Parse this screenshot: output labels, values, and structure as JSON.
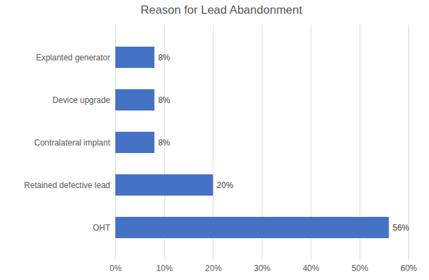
{
  "chart_data": {
    "type": "bar",
    "title": "Reason for Lead Abandonment",
    "orientation": "horizontal",
    "categories": [
      "Explanted generator",
      "Device upgrade",
      "Contralateral implant",
      "Retained defective lead",
      "OHT"
    ],
    "values": [
      8,
      8,
      8,
      20,
      56
    ],
    "value_labels": [
      "8%",
      "8%",
      "8%",
      "20%",
      "56%"
    ],
    "data_labels": true,
    "color": "#4472c4",
    "xlim": [
      0,
      60
    ],
    "xticks": [
      {
        "value": 0,
        "label": "0%"
      },
      {
        "value": 10,
        "label": "10%"
      },
      {
        "value": 20,
        "label": "20%"
      },
      {
        "value": 30,
        "label": "30%"
      },
      {
        "value": 40,
        "label": "40%"
      },
      {
        "value": 50,
        "label": "50%"
      },
      {
        "value": 60,
        "label": "60%"
      }
    ],
    "grid": true
  }
}
